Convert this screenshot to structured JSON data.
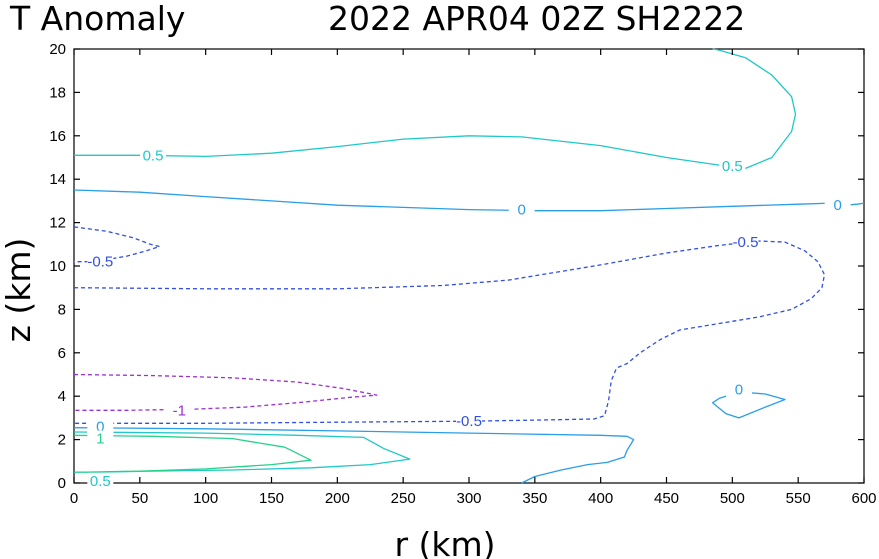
{
  "chart_data": {
    "type": "contour",
    "title_left": "T Anomaly",
    "title_right": "2022 APR04 02Z   SH2222",
    "xlabel": "r (km)",
    "ylabel": "z (km)",
    "xlim": [
      0,
      600
    ],
    "ylim": [
      0,
      20
    ],
    "xticks": [
      "0",
      "50",
      "100",
      "150",
      "200",
      "250",
      "300",
      "350",
      "400",
      "450",
      "500",
      "550",
      "600"
    ],
    "yticks": [
      "0",
      "2",
      "4",
      "6",
      "8",
      "10",
      "12",
      "14",
      "16",
      "18",
      "20"
    ],
    "grid": false,
    "contours": [
      {
        "name": "contour-pos-0.5-upper",
        "level": "0.5",
        "color": "#20c8c8",
        "dashed": false,
        "points": [
          [
            0,
            15.1
          ],
          [
            50,
            15.1
          ],
          [
            100,
            15.05
          ],
          [
            150,
            15.2
          ],
          [
            200,
            15.5
          ],
          [
            250,
            15.85
          ],
          [
            300,
            16.0
          ],
          [
            340,
            15.95
          ],
          [
            400,
            15.55
          ],
          [
            450,
            15.0
          ],
          [
            490,
            14.65
          ],
          [
            510,
            14.5
          ],
          [
            530,
            15.0
          ],
          [
            545,
            16.2
          ],
          [
            548,
            17.0
          ],
          [
            545,
            17.8
          ],
          [
            530,
            18.8
          ],
          [
            510,
            19.6
          ],
          [
            490,
            19.95
          ],
          [
            485,
            20.0
          ]
        ],
        "labels": [
          {
            "text": "0.5",
            "x": 60,
            "y": 15.1
          },
          {
            "text": "0.5",
            "x": 500,
            "y": 14.6
          }
        ]
      },
      {
        "name": "contour-zero-upper",
        "level": "0",
        "color": "#2a9ee8",
        "dashed": false,
        "points": [
          [
            0,
            13.5
          ],
          [
            50,
            13.4
          ],
          [
            100,
            13.2
          ],
          [
            150,
            13.0
          ],
          [
            200,
            12.8
          ],
          [
            250,
            12.7
          ],
          [
            300,
            12.6
          ],
          [
            350,
            12.55
          ],
          [
            400,
            12.55
          ],
          [
            450,
            12.65
          ],
          [
            500,
            12.75
          ],
          [
            550,
            12.85
          ],
          [
            575,
            12.9
          ],
          [
            585,
            12.8
          ],
          [
            595,
            12.85
          ],
          [
            600,
            12.9
          ]
        ],
        "labels": [
          {
            "text": "0",
            "x": 340,
            "y": 12.6
          },
          {
            "text": "0",
            "x": 580,
            "y": 12.8
          }
        ]
      },
      {
        "name": "contour-neg-0.5-small",
        "level": "-0.5",
        "color": "#3250e0",
        "dashed": true,
        "points": [
          [
            0,
            11.8
          ],
          [
            25,
            11.6
          ],
          [
            45,
            11.3
          ],
          [
            58,
            11.0
          ],
          [
            65,
            10.9
          ],
          [
            55,
            10.7
          ],
          [
            40,
            10.45
          ],
          [
            25,
            10.3
          ],
          [
            10,
            10.2
          ],
          [
            0,
            10.2
          ]
        ],
        "labels": [
          {
            "text": "-0.5",
            "x": 20,
            "y": 10.2
          }
        ]
      },
      {
        "name": "contour-neg-0.5-large",
        "level": "-0.5",
        "color": "#3250e0",
        "dashed": true,
        "points": [
          [
            0,
            9.0
          ],
          [
            100,
            8.95
          ],
          [
            200,
            8.95
          ],
          [
            280,
            9.1
          ],
          [
            330,
            9.35
          ],
          [
            370,
            9.75
          ],
          [
            400,
            10.05
          ],
          [
            450,
            10.6
          ],
          [
            490,
            10.95
          ],
          [
            520,
            11.15
          ],
          [
            540,
            11.1
          ],
          [
            555,
            10.7
          ],
          [
            565,
            10.2
          ],
          [
            570,
            9.6
          ],
          [
            568,
            9.0
          ],
          [
            560,
            8.5
          ],
          [
            545,
            8.0
          ],
          [
            520,
            7.65
          ],
          [
            490,
            7.35
          ],
          [
            460,
            7.05
          ],
          [
            445,
            6.6
          ],
          [
            430,
            6.0
          ],
          [
            420,
            5.5
          ],
          [
            412,
            5.3
          ],
          [
            408,
            4.7
          ],
          [
            406,
            3.8
          ],
          [
            403,
            3.1
          ],
          [
            395,
            2.95
          ],
          [
            350,
            2.9
          ],
          [
            300,
            2.85
          ],
          [
            200,
            2.8
          ],
          [
            100,
            2.75
          ],
          [
            0,
            2.75
          ]
        ],
        "labels": [
          {
            "text": "-0.5",
            "x": 510,
            "y": 11.1
          },
          {
            "text": "-0.5",
            "x": 300,
            "y": 2.85
          }
        ]
      },
      {
        "name": "contour-neg-1",
        "level": "-1",
        "color": "#9b30d0",
        "dashed": true,
        "points": [
          [
            0,
            5.0
          ],
          [
            60,
            4.95
          ],
          [
            120,
            4.85
          ],
          [
            170,
            4.65
          ],
          [
            205,
            4.35
          ],
          [
            230,
            4.05
          ],
          [
            210,
            3.95
          ],
          [
            170,
            3.7
          ],
          [
            130,
            3.5
          ],
          [
            90,
            3.4
          ],
          [
            40,
            3.35
          ],
          [
            0,
            3.35
          ]
        ],
        "labels": [
          {
            "text": "-1",
            "x": 80,
            "y": 3.35
          }
        ]
      },
      {
        "name": "contour-zero-lower",
        "level": "0",
        "color": "#2a9ee8",
        "dashed": false,
        "points": [
          [
            0,
            2.55
          ],
          [
            100,
            2.5
          ],
          [
            200,
            2.4
          ],
          [
            300,
            2.3
          ],
          [
            400,
            2.2
          ],
          [
            420,
            2.15
          ],
          [
            425,
            2.0
          ],
          [
            420,
            1.5
          ],
          [
            418,
            1.2
          ],
          [
            405,
            0.95
          ],
          [
            390,
            0.85
          ],
          [
            370,
            0.6
          ],
          [
            350,
            0.3
          ],
          [
            340,
            0.0
          ]
        ],
        "labels": [
          {
            "text": "0",
            "x": 20,
            "y": 2.6
          }
        ]
      },
      {
        "name": "contour-zero-small",
        "level": "0",
        "color": "#2a9ee8",
        "dashed": false,
        "points": [
          [
            490,
            3.9
          ],
          [
            505,
            4.2
          ],
          [
            525,
            4.1
          ],
          [
            540,
            3.85
          ],
          [
            525,
            3.5
          ],
          [
            505,
            3.0
          ],
          [
            495,
            3.2
          ],
          [
            485,
            3.7
          ],
          [
            490,
            3.9
          ]
        ],
        "labels": [
          {
            "text": "0",
            "x": 505,
            "y": 4.3
          }
        ]
      },
      {
        "name": "contour-pos-0.5-lower",
        "level": "0.5",
        "color": "#20c8c8",
        "dashed": false,
        "points": [
          [
            0,
            2.35
          ],
          [
            100,
            2.3
          ],
          [
            170,
            2.2
          ],
          [
            220,
            2.1
          ],
          [
            235,
            1.6
          ],
          [
            255,
            1.1
          ],
          [
            225,
            0.85
          ],
          [
            180,
            0.7
          ],
          [
            120,
            0.6
          ],
          [
            60,
            0.55
          ],
          [
            20,
            0.5
          ],
          [
            0,
            0.5
          ]
        ],
        "labels": [
          {
            "text": "0.5",
            "x": 20,
            "y": 0.1
          }
        ]
      },
      {
        "name": "contour-pos-1",
        "level": "1",
        "color": "#26d28a",
        "dashed": false,
        "points": [
          [
            0,
            2.2
          ],
          [
            60,
            2.15
          ],
          [
            120,
            2.05
          ],
          [
            160,
            1.65
          ],
          [
            180,
            1.05
          ],
          [
            150,
            0.85
          ],
          [
            100,
            0.65
          ],
          [
            50,
            0.55
          ],
          [
            10,
            0.5
          ],
          [
            0,
            0.5
          ]
        ],
        "labels": [
          {
            "text": "1",
            "x": 20,
            "y": 2.05
          }
        ]
      }
    ]
  }
}
